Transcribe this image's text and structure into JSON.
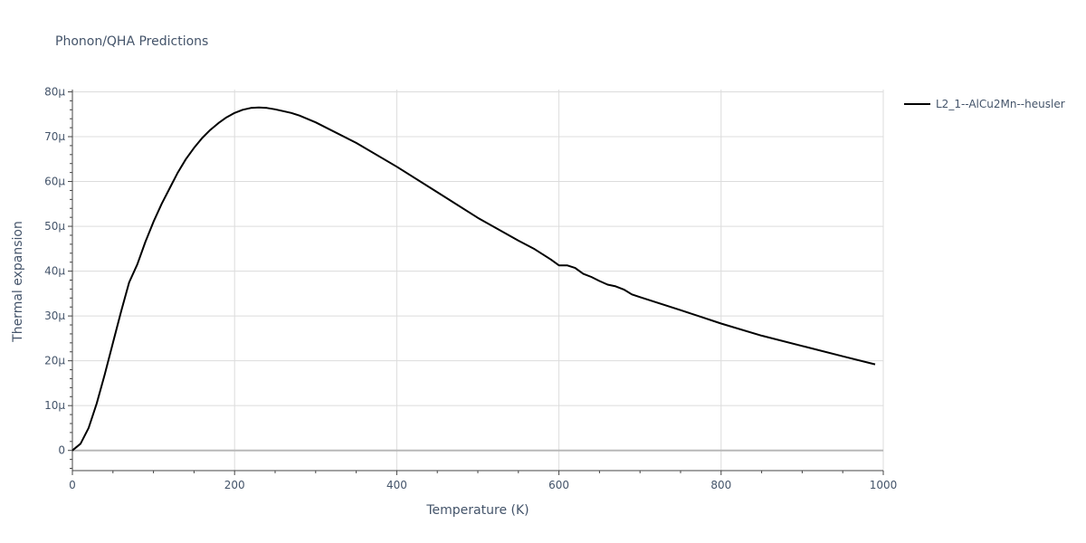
{
  "chart_data": {
    "type": "line",
    "title": "Phonon/QHA Predictions",
    "xlabel": "Temperature (K)",
    "ylabel": "Thermal expansion",
    "xlim": [
      0,
      1000
    ],
    "ylim": [
      -4.5,
      80.5
    ],
    "x_ticks": [
      0,
      200,
      400,
      600,
      800,
      1000
    ],
    "x_tick_labels": [
      "0",
      "200",
      "400",
      "600",
      "800",
      "1000"
    ],
    "y_ticks": [
      0,
      10,
      20,
      30,
      40,
      50,
      60,
      70,
      80
    ],
    "y_tick_labels": [
      "0",
      "10μ",
      "20μ",
      "30μ",
      "40μ",
      "50μ",
      "60μ",
      "70μ",
      "80μ"
    ],
    "grid": true,
    "legend_position": "top-right",
    "series": [
      {
        "name": "L2_1--AlCu2Mn--heusler",
        "color": "#000000",
        "x": [
          0,
          10,
          20,
          30,
          40,
          50,
          60,
          70,
          80,
          90,
          100,
          110,
          120,
          130,
          140,
          150,
          160,
          170,
          180,
          190,
          200,
          210,
          220,
          230,
          240,
          250,
          260,
          270,
          280,
          300,
          350,
          400,
          450,
          500,
          550,
          570,
          590,
          600,
          610,
          620,
          630,
          640,
          650,
          660,
          670,
          680,
          690,
          700,
          750,
          775,
          800,
          850,
          900,
          950,
          990
        ],
        "y": [
          0,
          1.5,
          5,
          10.5,
          17,
          24,
          31,
          37.5,
          41.5,
          46.5,
          51,
          55,
          58.5,
          62,
          65,
          67.5,
          69.7,
          71.5,
          73,
          74.3,
          75.3,
          76,
          76.4,
          76.5,
          76.4,
          76.1,
          75.7,
          75.3,
          74.7,
          73.2,
          68.6,
          63.3,
          57.6,
          51.9,
          46.8,
          44.9,
          42.6,
          41.3,
          41.3,
          40.7,
          39.4,
          38.7,
          37.8,
          37,
          36.6,
          35.9,
          34.8,
          34.2,
          31.3,
          29.8,
          28.3,
          25.6,
          23.3,
          21,
          19.2
        ]
      }
    ]
  }
}
